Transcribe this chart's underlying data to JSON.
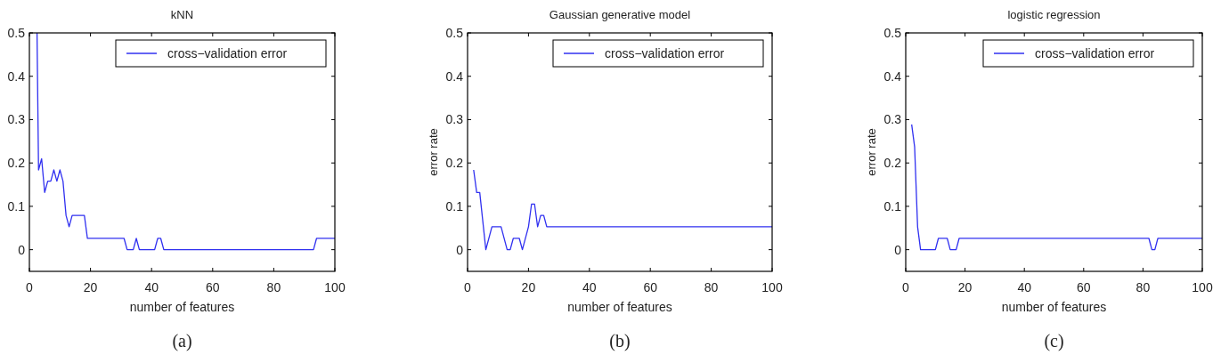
{
  "chart_data": [
    {
      "type": "line",
      "title": "kNN",
      "xlabel": "number of features",
      "annotations": [
        "(a)"
      ],
      "xlim": [
        0,
        100
      ],
      "ylim": [
        -0.05,
        0.5
      ],
      "xticks": [
        0,
        20,
        40,
        60,
        80,
        100
      ],
      "yticks": [
        0,
        0.1,
        0.2,
        0.3,
        0.4,
        0.5
      ],
      "grid": false,
      "legend": "top right",
      "marker": "none",
      "line_style": "solid",
      "series": [
        {
          "name": "cross−validation error",
          "color": "#3030f0",
          "x": [
            2.5,
            3,
            4,
            5,
            6,
            7,
            8,
            9,
            10,
            11,
            12,
            13,
            14,
            18,
            19,
            31,
            32,
            34,
            35,
            36,
            41,
            42,
            43,
            44,
            93,
            94,
            100
          ],
          "values": [
            0.5,
            0.184,
            0.21,
            0.132,
            0.158,
            0.158,
            0.184,
            0.158,
            0.184,
            0.158,
            0.079,
            0.053,
            0.079,
            0.079,
            0.026,
            0.026,
            0,
            0,
            0.026,
            0,
            0,
            0.026,
            0.026,
            0,
            0,
            0.026,
            0.026
          ]
        }
      ]
    },
    {
      "type": "line",
      "title": "Gaussian generative model",
      "xlabel": "number of features",
      "ylabel": "error rate",
      "annotations": [
        "(b)"
      ],
      "xlim": [
        0,
        100
      ],
      "ylim": [
        -0.05,
        0.5
      ],
      "xticks": [
        0,
        20,
        40,
        60,
        80,
        100
      ],
      "yticks": [
        0,
        0.1,
        0.2,
        0.3,
        0.4,
        0.5
      ],
      "grid": false,
      "legend": "top right",
      "marker": "none",
      "line_style": "solid",
      "series": [
        {
          "name": "cross−validation error",
          "color": "#3030f0",
          "x": [
            2,
            3,
            4,
            6,
            8,
            11,
            13,
            14,
            15,
            17,
            18,
            20,
            21,
            22,
            23,
            24,
            25,
            26,
            100
          ],
          "values": [
            0.184,
            0.132,
            0.132,
            0,
            0.053,
            0.053,
            0,
            0,
            0.026,
            0.026,
            0,
            0.053,
            0.105,
            0.105,
            0.053,
            0.079,
            0.079,
            0.053,
            0.053
          ]
        }
      ]
    },
    {
      "type": "line",
      "title": "logistic regression",
      "xlabel": "number of features",
      "ylabel": "error rate",
      "annotations": [
        "(c)"
      ],
      "xlim": [
        0,
        100
      ],
      "ylim": [
        -0.05,
        0.5
      ],
      "xticks": [
        0,
        20,
        40,
        60,
        80,
        100
      ],
      "yticks": [
        0,
        0.1,
        0.2,
        0.3,
        0.4,
        0.5
      ],
      "grid": false,
      "legend": "top right",
      "marker": "none",
      "line_style": "solid",
      "series": [
        {
          "name": "cross−validation error",
          "color": "#3030f0",
          "x": [
            2,
            3,
            4,
            5,
            10,
            11,
            14,
            15,
            17,
            18,
            82,
            83,
            84,
            85,
            100
          ],
          "values": [
            0.289,
            0.237,
            0.053,
            0,
            0,
            0.026,
            0.026,
            0,
            0,
            0.026,
            0.026,
            0,
            0,
            0.026,
            0.026
          ]
        }
      ]
    }
  ]
}
